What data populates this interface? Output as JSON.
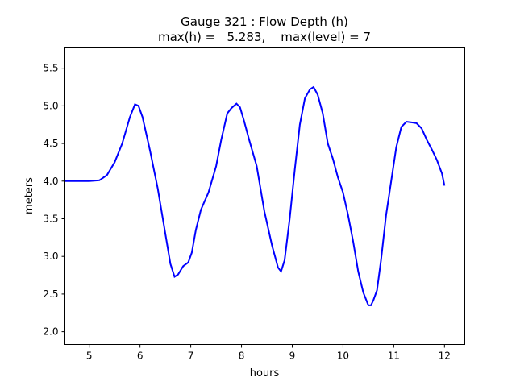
{
  "chart_data": {
    "type": "line",
    "title_line1": "Gauge 321 : Flow Depth (h)",
    "title_line2": "max(h) =   5.283,    max(level) = 7",
    "xlabel": "hours",
    "ylabel": "meters",
    "xlim": [
      4.52,
      12.4
    ],
    "ylim": [
      1.83,
      5.78
    ],
    "xticks": [
      5,
      6,
      7,
      8,
      9,
      10,
      11,
      12
    ],
    "xtick_labels": [
      "5",
      "6",
      "7",
      "8",
      "9",
      "10",
      "11",
      "12"
    ],
    "yticks": [
      2.0,
      2.5,
      3.0,
      3.5,
      4.0,
      4.5,
      5.0,
      5.5
    ],
    "ytick_labels": [
      "2.0",
      "2.5",
      "3.0",
      "3.5",
      "4.0",
      "4.5",
      "5.0",
      "5.5"
    ],
    "grid": false,
    "series": [
      {
        "name": "h",
        "color": "#0000ff",
        "x": [
          4.52,
          5.0,
          5.2,
          5.35,
          5.5,
          5.65,
          5.8,
          5.9,
          5.97,
          6.05,
          6.2,
          6.35,
          6.5,
          6.6,
          6.68,
          6.75,
          6.85,
          6.95,
          7.02,
          7.1,
          7.2,
          7.35,
          7.5,
          7.6,
          7.72,
          7.8,
          7.9,
          7.97,
          8.05,
          8.15,
          8.3,
          8.45,
          8.6,
          8.72,
          8.78,
          8.85,
          8.95,
          9.05,
          9.15,
          9.25,
          9.35,
          9.42,
          9.5,
          9.6,
          9.7,
          9.8,
          9.9,
          10.0,
          10.1,
          10.2,
          10.3,
          10.4,
          10.5,
          10.55,
          10.6,
          10.67,
          10.75,
          10.85,
          10.95,
          11.05,
          11.15,
          11.25,
          11.35,
          11.45,
          11.55,
          11.65,
          11.75,
          11.85,
          11.95,
          12.0
        ],
        "y": [
          4.0,
          4.0,
          4.01,
          4.08,
          4.25,
          4.5,
          4.85,
          5.02,
          5.0,
          4.85,
          4.4,
          3.9,
          3.3,
          2.9,
          2.73,
          2.76,
          2.87,
          2.92,
          3.05,
          3.35,
          3.62,
          3.85,
          4.2,
          4.55,
          4.9,
          4.97,
          5.03,
          4.98,
          4.8,
          4.55,
          4.2,
          3.6,
          3.15,
          2.85,
          2.8,
          2.95,
          3.5,
          4.15,
          4.75,
          5.1,
          5.22,
          5.25,
          5.15,
          4.9,
          4.5,
          4.3,
          4.05,
          3.85,
          3.55,
          3.2,
          2.8,
          2.52,
          2.35,
          2.35,
          2.42,
          2.55,
          2.95,
          3.55,
          4.0,
          4.45,
          4.72,
          4.79,
          4.78,
          4.77,
          4.7,
          4.55,
          4.42,
          4.28,
          4.1,
          3.94
        ]
      }
    ]
  }
}
